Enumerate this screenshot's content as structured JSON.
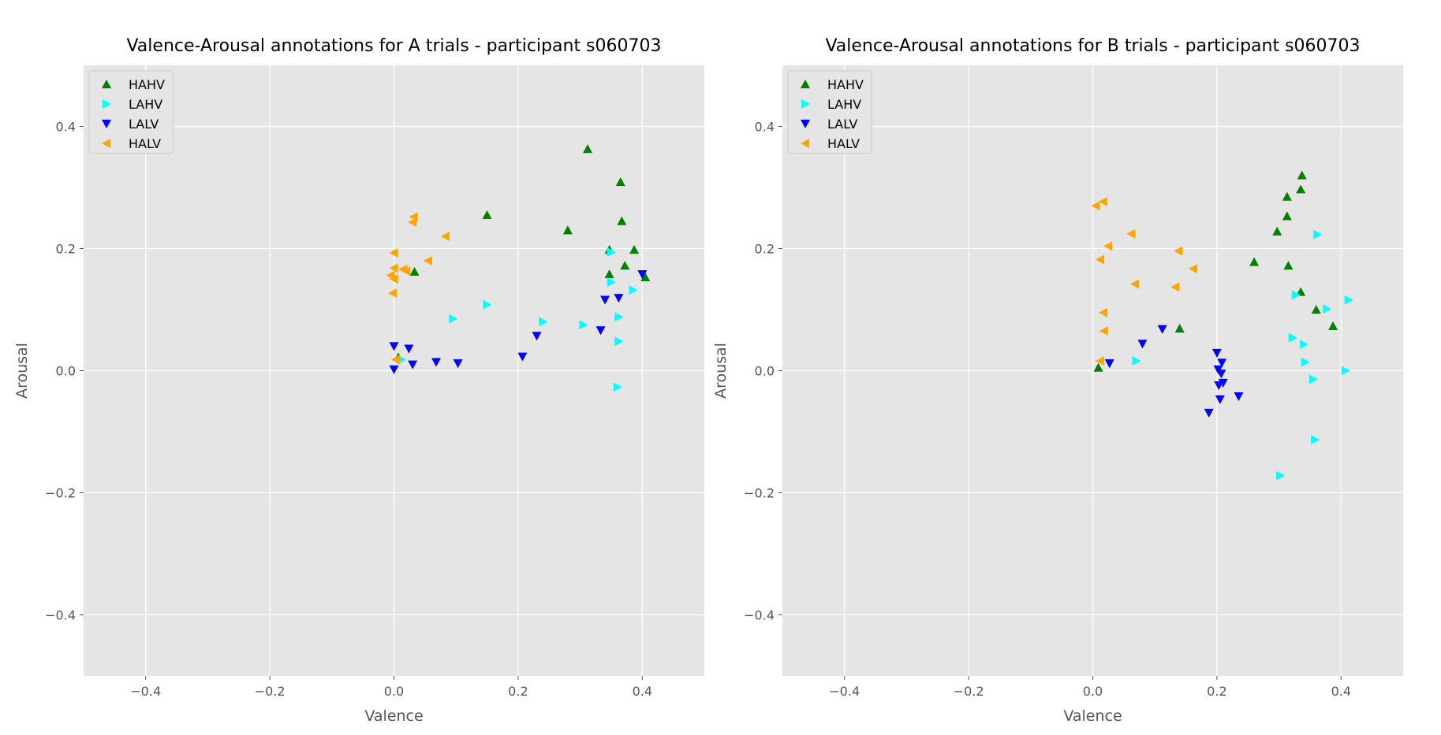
{
  "chart_data": [
    {
      "type": "scatter",
      "title": "Valence-Arousal annotations for A trials - participant s060703",
      "xlabel": "Valence",
      "ylabel": "Arousal",
      "xlim": [
        -0.5,
        0.5
      ],
      "ylim": [
        -0.5,
        0.5
      ],
      "xticks": [
        -0.4,
        -0.2,
        0.0,
        0.2,
        0.4
      ],
      "yticks": [
        -0.4,
        -0.2,
        0.0,
        0.2,
        0.4
      ],
      "xtick_labels": [
        "−0.4",
        "−0.2",
        "0.0",
        "0.2",
        "0.4"
      ],
      "ytick_labels": [
        "−0.4",
        "−0.2",
        "0.0",
        "0.2",
        "0.4"
      ],
      "grid": true,
      "legend_position": "top-left",
      "series": [
        {
          "name": "HAHV",
          "marker": "triangle-up",
          "color": "#008000",
          "points": [
            [
              0.312,
              0.363
            ],
            [
              0.365,
              0.309
            ],
            [
              0.15,
              0.255
            ],
            [
              0.28,
              0.23
            ],
            [
              0.367,
              0.245
            ],
            [
              0.347,
              0.198
            ],
            [
              0.387,
              0.198
            ],
            [
              0.372,
              0.172
            ],
            [
              0.347,
              0.158
            ],
            [
              0.405,
              0.153
            ],
            [
              0.033,
              0.162
            ],
            [
              0.007,
              0.022
            ]
          ]
        },
        {
          "name": "LAHV",
          "marker": "triangle-right",
          "color": "#00ffff",
          "points": [
            [
              0.35,
              0.194
            ],
            [
              0.35,
              0.145
            ],
            [
              0.385,
              0.132
            ],
            [
              0.15,
              0.108
            ],
            [
              0.095,
              0.085
            ],
            [
              0.24,
              0.08
            ],
            [
              0.305,
              0.075
            ],
            [
              0.362,
              0.088
            ],
            [
              0.362,
              0.048
            ],
            [
              0.36,
              -0.027
            ],
            [
              0.012,
              0.018
            ]
          ]
        },
        {
          "name": "LALV",
          "marker": "triangle-down",
          "color": "#0000ff",
          "points": [
            [
              0.0,
              0.04
            ],
            [
              0.024,
              0.036
            ],
            [
              0.0,
              0.002
            ],
            [
              0.03,
              0.01
            ],
            [
              0.068,
              0.014
            ],
            [
              0.103,
              0.012
            ],
            [
              0.207,
              0.023
            ],
            [
              0.23,
              0.057
            ],
            [
              0.333,
              0.066
            ],
            [
              0.34,
              0.116
            ],
            [
              0.362,
              0.119
            ],
            [
              0.4,
              0.158
            ]
          ]
        },
        {
          "name": "HALV",
          "marker": "triangle-left",
          "color": "#ffa500",
          "points": [
            [
              0.032,
              0.252
            ],
            [
              0.03,
              0.243
            ],
            [
              0.083,
              0.22
            ],
            [
              0.0,
              0.193
            ],
            [
              0.055,
              0.18
            ],
            [
              0.0,
              0.168
            ],
            [
              0.015,
              0.166
            ],
            [
              0.02,
              0.163
            ],
            [
              -0.005,
              0.156
            ],
            [
              0.0,
              0.15
            ],
            [
              -0.002,
              0.127
            ],
            [
              0.003,
              0.018
            ]
          ]
        }
      ]
    },
    {
      "type": "scatter",
      "title": "Valence-Arousal annotations for B trials - participant s060703",
      "xlabel": "Valence",
      "ylabel": "Arousal",
      "xlim": [
        -0.5,
        0.5
      ],
      "ylim": [
        -0.5,
        0.5
      ],
      "xticks": [
        -0.4,
        -0.2,
        0.0,
        0.2,
        0.4
      ],
      "yticks": [
        -0.4,
        -0.2,
        0.0,
        0.2,
        0.4
      ],
      "xtick_labels": [
        "−0.4",
        "−0.2",
        "0.0",
        "0.2",
        "0.4"
      ],
      "ytick_labels": [
        "−0.4",
        "−0.2",
        "0.0",
        "0.2",
        "0.4"
      ],
      "grid": true,
      "legend_position": "top-left",
      "series": [
        {
          "name": "HAHV",
          "marker": "triangle-up",
          "color": "#008000",
          "points": [
            [
              0.337,
              0.32
            ],
            [
              0.335,
              0.297
            ],
            [
              0.313,
              0.285
            ],
            [
              0.313,
              0.253
            ],
            [
              0.297,
              0.228
            ],
            [
              0.26,
              0.178
            ],
            [
              0.315,
              0.172
            ],
            [
              0.335,
              0.129
            ],
            [
              0.36,
              0.1
            ],
            [
              0.387,
              0.073
            ],
            [
              0.14,
              0.069
            ],
            [
              0.009,
              0.005
            ]
          ]
        },
        {
          "name": "LAHV",
          "marker": "triangle-right",
          "color": "#00ffff",
          "points": [
            [
              0.362,
              0.223
            ],
            [
              0.412,
              0.116
            ],
            [
              0.327,
              0.124
            ],
            [
              0.377,
              0.101
            ],
            [
              0.322,
              0.054
            ],
            [
              0.34,
              0.043
            ],
            [
              0.342,
              0.014
            ],
            [
              0.07,
              0.016
            ],
            [
              0.407,
              0.0
            ],
            [
              0.355,
              -0.014
            ],
            [
              0.358,
              -0.113
            ],
            [
              0.302,
              -0.172
            ]
          ]
        },
        {
          "name": "LALV",
          "marker": "triangle-down",
          "color": "#0000ff",
          "points": [
            [
              0.112,
              0.068
            ],
            [
              0.08,
              0.044
            ],
            [
              0.027,
              0.012
            ],
            [
              0.2,
              0.029
            ],
            [
              0.208,
              0.013
            ],
            [
              0.202,
              0.002
            ],
            [
              0.207,
              -0.005
            ],
            [
              0.21,
              -0.02
            ],
            [
              0.203,
              -0.024
            ],
            [
              0.235,
              -0.042
            ],
            [
              0.205,
              -0.047
            ],
            [
              0.187,
              -0.069
            ]
          ]
        },
        {
          "name": "HALV",
          "marker": "triangle-left",
          "color": "#ffa500",
          "points": [
            [
              0.017,
              0.277
            ],
            [
              0.005,
              0.27
            ],
            [
              0.062,
              0.224
            ],
            [
              0.025,
              0.204
            ],
            [
              0.138,
              0.196
            ],
            [
              0.012,
              0.182
            ],
            [
              0.162,
              0.167
            ],
            [
              0.068,
              0.142
            ],
            [
              0.133,
              0.137
            ],
            [
              0.017,
              0.095
            ],
            [
              0.018,
              0.065
            ],
            [
              0.012,
              0.016
            ]
          ]
        }
      ]
    }
  ]
}
